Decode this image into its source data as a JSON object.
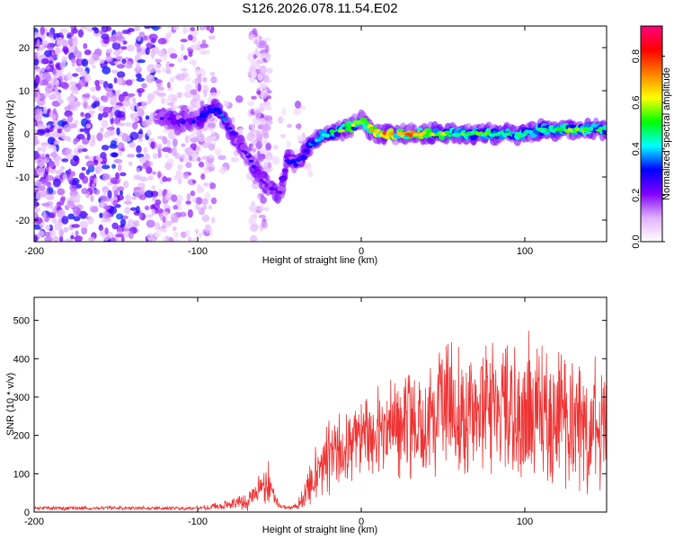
{
  "title": "S126.2026.078.11.54.E02",
  "chart_data": [
    {
      "type": "heatmap",
      "name": "spectrogram",
      "xlabel": "Height of straight line (km)",
      "ylabel": "Frequency (Hz)",
      "xlim": [
        -200,
        150
      ],
      "ylim": [
        -25,
        25
      ],
      "xticks": [
        -200,
        -100,
        0,
        100
      ],
      "yticks": [
        -20,
        -10,
        0,
        10,
        20
      ],
      "colorbar": {
        "label": "Normalized spectral amplitude",
        "range": [
          0,
          0.93
        ],
        "ticks": [
          "0.0",
          "0.2",
          "0.4",
          "0.6",
          "0.8"
        ],
        "tick_values": [
          0,
          0.2,
          0.4,
          0.6,
          0.8
        ],
        "colors": [
          "#ffffff",
          "#e0b0ff",
          "#8000ff",
          "#0000ff",
          "#00ffff",
          "#00ff00",
          "#ffff00",
          "#ff8000",
          "#ff0000",
          "#ff0080"
        ]
      },
      "signal_track": {
        "height_km": [
          -125,
          -110,
          -100,
          -95,
          -90,
          -85,
          -80,
          -75,
          -70,
          -65,
          -60,
          -55,
          -50,
          -45,
          -40,
          -35,
          -30,
          -20,
          -10,
          -5,
          0,
          5,
          10,
          20,
          30,
          40,
          50,
          60,
          70,
          80,
          90,
          100,
          110,
          120,
          130,
          140,
          150
        ],
        "frequency_hz": [
          4,
          3,
          3,
          5,
          6,
          4,
          1,
          -2,
          -5,
          -8,
          -11,
          -13,
          -14,
          -6,
          -7,
          -5,
          -2,
          0,
          1,
          2,
          3,
          1,
          0,
          0,
          0,
          0,
          0,
          0,
          0,
          0,
          0,
          0,
          1,
          1,
          1,
          1,
          1
        ],
        "peak_amplitude": [
          0.25,
          0.3,
          0.35,
          0.4,
          0.45,
          0.4,
          0.35,
          0.3,
          0.3,
          0.3,
          0.25,
          0.25,
          0.3,
          0.35,
          0.35,
          0.4,
          0.45,
          0.55,
          0.65,
          0.75,
          0.8,
          0.85,
          0.9,
          0.9,
          0.85,
          0.75,
          0.7,
          0.65,
          0.6,
          0.6,
          0.55,
          0.6,
          0.6,
          0.6,
          0.65,
          0.65,
          0.6
        ]
      }
    },
    {
      "type": "line",
      "name": "snr",
      "xlabel": "Height of straight line (km)",
      "ylabel": "SNR (10 * v/v)",
      "xlim": [
        -200,
        150
      ],
      "ylim": [
        0,
        560
      ],
      "xticks": [
        -200,
        -100,
        0,
        100
      ],
      "yticks": [
        0,
        100,
        200,
        300,
        400,
        500
      ],
      "color": "#ee3333",
      "envelope": {
        "height_km": [
          -200,
          -150,
          -100,
          -80,
          -70,
          -62,
          -58,
          -55,
          -52,
          -50,
          -45,
          -40,
          -35,
          -30,
          -25,
          -20,
          -10,
          0,
          10,
          20,
          30,
          40,
          50,
          60,
          70,
          80,
          90,
          100,
          110,
          120,
          130,
          140,
          150
        ],
        "mean": [
          10,
          10,
          10,
          20,
          30,
          60,
          80,
          60,
          30,
          15,
          12,
          15,
          40,
          80,
          110,
          140,
          170,
          190,
          210,
          230,
          240,
          260,
          270,
          270,
          265,
          260,
          250,
          260,
          250,
          245,
          240,
          230,
          225
        ],
        "amplitude": [
          6,
          6,
          6,
          15,
          30,
          50,
          80,
          40,
          20,
          8,
          6,
          10,
          40,
          70,
          100,
          120,
          130,
          140,
          150,
          160,
          170,
          180,
          190,
          200,
          210,
          210,
          220,
          230,
          220,
          210,
          200,
          190,
          180
        ]
      }
    }
  ]
}
